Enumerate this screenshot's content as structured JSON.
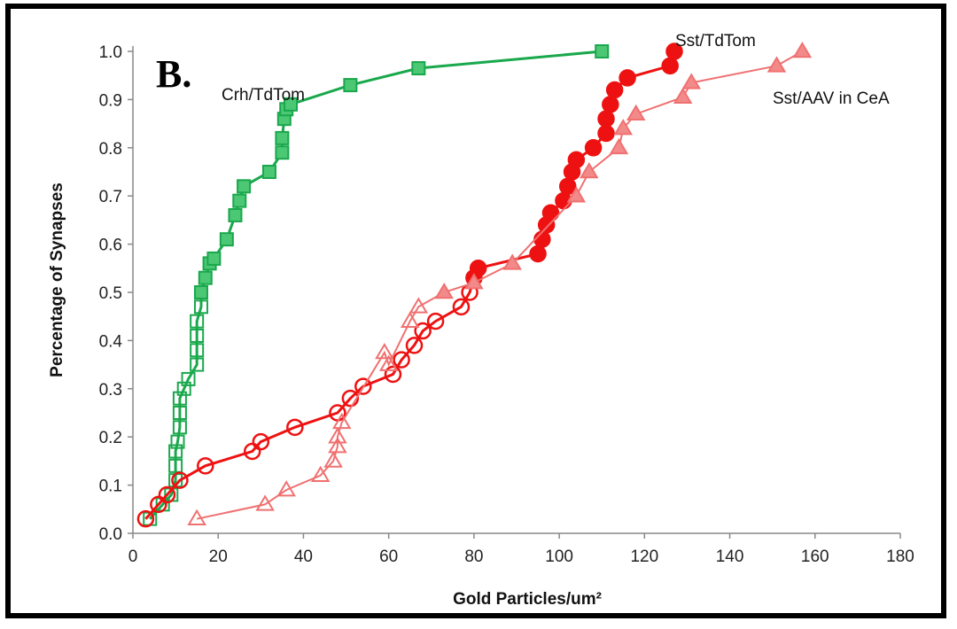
{
  "chart_data": {
    "type": "scatter",
    "panel_label": "B.",
    "xlabel": "Gold Particles/um²",
    "ylabel": "Percentage of Synapses",
    "xlim": [
      0,
      180
    ],
    "ylim": [
      0,
      1.0
    ],
    "xticks": [
      "0",
      "20",
      "40",
      "60",
      "80",
      "100",
      "120",
      "140",
      "160",
      "180"
    ],
    "yticks": [
      "0.0",
      "0.1",
      "0.2",
      "0.3",
      "0.4",
      "0.5",
      "0.6",
      "0.7",
      "0.8",
      "0.9",
      "1.0"
    ],
    "grid": false,
    "series": [
      {
        "name": "Crh/TdTom",
        "color": "#19a84c",
        "marker": "square",
        "points": [
          [
            4,
            0.03
          ],
          [
            7,
            0.06
          ],
          [
            9,
            0.08
          ],
          [
            10,
            0.11
          ],
          [
            10,
            0.14
          ],
          [
            10,
            0.17
          ],
          [
            10.5,
            0.19
          ],
          [
            11,
            0.22
          ],
          [
            11,
            0.25
          ],
          [
            11,
            0.28
          ],
          [
            12,
            0.3
          ],
          [
            13,
            0.32
          ],
          [
            15,
            0.35
          ],
          [
            15,
            0.38
          ],
          [
            15,
            0.41
          ],
          [
            15,
            0.44
          ],
          [
            16,
            0.47
          ],
          [
            16,
            0.5
          ],
          [
            17,
            0.53
          ],
          [
            18,
            0.56
          ],
          [
            19,
            0.57
          ],
          [
            22,
            0.61
          ],
          [
            24,
            0.66
          ],
          [
            25,
            0.69
          ],
          [
            26,
            0.72
          ],
          [
            32,
            0.75
          ],
          [
            35,
            0.79
          ],
          [
            35,
            0.82
          ],
          [
            35.5,
            0.86
          ],
          [
            36,
            0.88
          ],
          [
            37,
            0.89
          ],
          [
            51,
            0.93
          ],
          [
            67,
            0.965
          ],
          [
            110,
            1.0
          ]
        ]
      },
      {
        "name": "Sst/TdTom",
        "color": "#ee1111",
        "marker": "circle",
        "points": [
          [
            3,
            0.03
          ],
          [
            6,
            0.06
          ],
          [
            8,
            0.08
          ],
          [
            11,
            0.11
          ],
          [
            17,
            0.14
          ],
          [
            28,
            0.17
          ],
          [
            30,
            0.19
          ],
          [
            38,
            0.22
          ],
          [
            48,
            0.25
          ],
          [
            51,
            0.28
          ],
          [
            54,
            0.305
          ],
          [
            61,
            0.33
          ],
          [
            63,
            0.36
          ],
          [
            66,
            0.39
          ],
          [
            68,
            0.42
          ],
          [
            71,
            0.44
          ],
          [
            77,
            0.47
          ],
          [
            79,
            0.5
          ],
          [
            80,
            0.53
          ],
          [
            81,
            0.55
          ],
          [
            95,
            0.58
          ],
          [
            96,
            0.61
          ],
          [
            97,
            0.64
          ],
          [
            98,
            0.665
          ],
          [
            101,
            0.69
          ],
          [
            102,
            0.72
          ],
          [
            103,
            0.75
          ],
          [
            104,
            0.775
          ],
          [
            108,
            0.8
          ],
          [
            111,
            0.83
          ],
          [
            111,
            0.86
          ],
          [
            112,
            0.89
          ],
          [
            113,
            0.92
          ],
          [
            116,
            0.945
          ],
          [
            126,
            0.97
          ],
          [
            127,
            1.0
          ]
        ]
      },
      {
        "name": "Sst/AAV in CeA",
        "color": "#f07070",
        "marker": "triangle",
        "points": [
          [
            15,
            0.03
          ],
          [
            31,
            0.06
          ],
          [
            36,
            0.09
          ],
          [
            44,
            0.12
          ],
          [
            47,
            0.15
          ],
          [
            48,
            0.18
          ],
          [
            48,
            0.2
          ],
          [
            49,
            0.23
          ],
          [
            59,
            0.375
          ],
          [
            60,
            0.35
          ],
          [
            65,
            0.44
          ],
          [
            67,
            0.47
          ],
          [
            73,
            0.5
          ],
          [
            80,
            0.52
          ],
          [
            89,
            0.56
          ],
          [
            104,
            0.7
          ],
          [
            107,
            0.75
          ],
          [
            114,
            0.8
          ],
          [
            115,
            0.84
          ],
          [
            118,
            0.87
          ],
          [
            129,
            0.905
          ],
          [
            131,
            0.935
          ],
          [
            151,
            0.97
          ],
          [
            157,
            1.0
          ]
        ]
      }
    ]
  }
}
